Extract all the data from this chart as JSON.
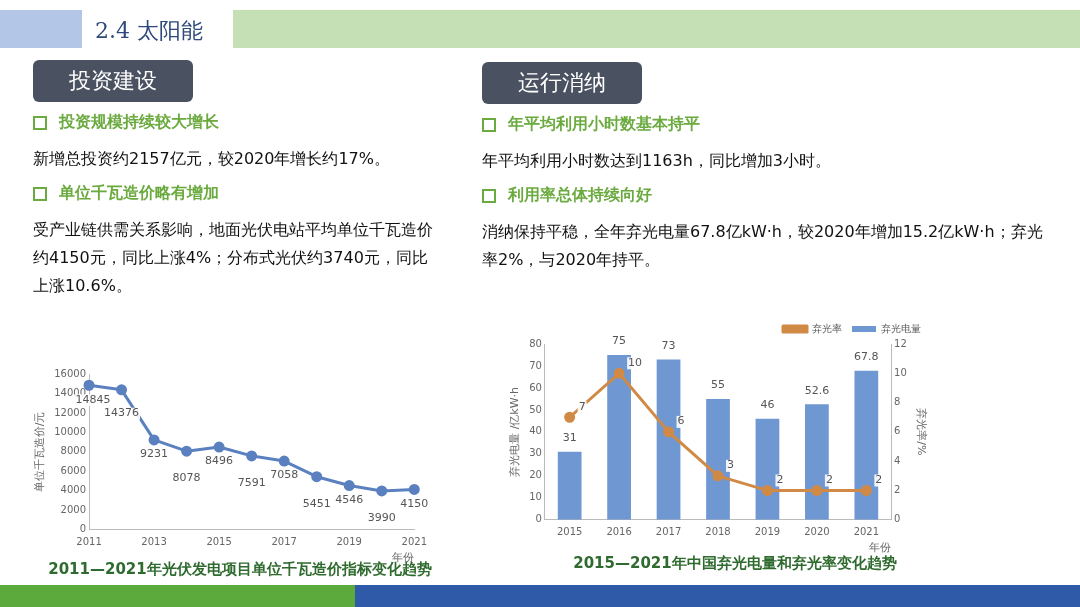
{
  "chart_data": [
    {
      "type": "other",
      "title": "2.4 太阳能"
    },
    {
      "type": "other",
      "title": "投资建设",
      "annotations": [
        "投资规模持续较大增长",
        "新增总投资约2157亿元，较2020年增长约17%。",
        "单位千瓦造价略有增加",
        "受产业链供需关系影响，地面光伏电站平均单位千瓦造价约4150元，同比上涨4%；分布式光伏约3740元，同比上涨10.6%。"
      ]
    },
    {
      "type": "other",
      "title": "运行消纳",
      "annotations": [
        "年平均利用小时数基本持平",
        "年平均利用小时数达到1163h，同比增加3小时。",
        "利用率总体持续向好",
        "消纳保持平稳，全年弃光电量67.8亿kW·h，较2020年增加15.2亿kW·h；弃光率2%，与2020年持平。"
      ]
    },
    {
      "type": "line",
      "title": "2011—2021年光伏发电项目单位千瓦造价指标变化趋势",
      "xlabel": "年份",
      "ylabel": "单位千瓦造价/元",
      "categories": [
        "2011",
        null,
        "2013",
        null,
        "2015",
        null,
        "2017",
        null,
        "2019",
        null,
        "2021"
      ],
      "values": [
        14845,
        14376,
        9231,
        8078,
        8496,
        7591,
        7058,
        5451,
        4546,
        3990,
        4150
      ],
      "color": "#5b80bf",
      "marker": "circle",
      "ylim": [
        0,
        16000
      ],
      "yticks": [
        0,
        2000,
        4000,
        6000,
        8000,
        10000,
        12000,
        14000,
        16000
      ],
      "data_labels": true
    },
    {
      "type": "bar",
      "title": "2015—2021年中国弃光电量和弃光率变化趋势",
      "xlabel": "年份",
      "ylabel": "弃光电量 /亿kW·h",
      "y2label": "弃光率/%",
      "categories": [
        "2015",
        "2016",
        "2017",
        "2018",
        "2019",
        "2020",
        "2021"
      ],
      "series": [
        {
          "name": "弃光电量",
          "type": "bar",
          "color": "#6f97d1",
          "values": [
            31,
            75,
            73,
            55,
            46,
            52.6,
            67.8
          ]
        },
        {
          "name": "弃光率",
          "type": "line",
          "axis": "y2",
          "color": "#d08a45",
          "values": [
            7,
            10,
            6,
            3,
            2,
            2,
            2
          ]
        }
      ],
      "ylim": [
        0,
        80
      ],
      "yticks": [
        0,
        10,
        20,
        30,
        40,
        50,
        60,
        70,
        80
      ],
      "y2lim": [
        0,
        12
      ],
      "y2ticks": [
        0,
        2,
        4,
        6,
        8,
        10,
        12
      ],
      "marker": "circle",
      "legend": "top right",
      "data_labels": true
    }
  ]
}
